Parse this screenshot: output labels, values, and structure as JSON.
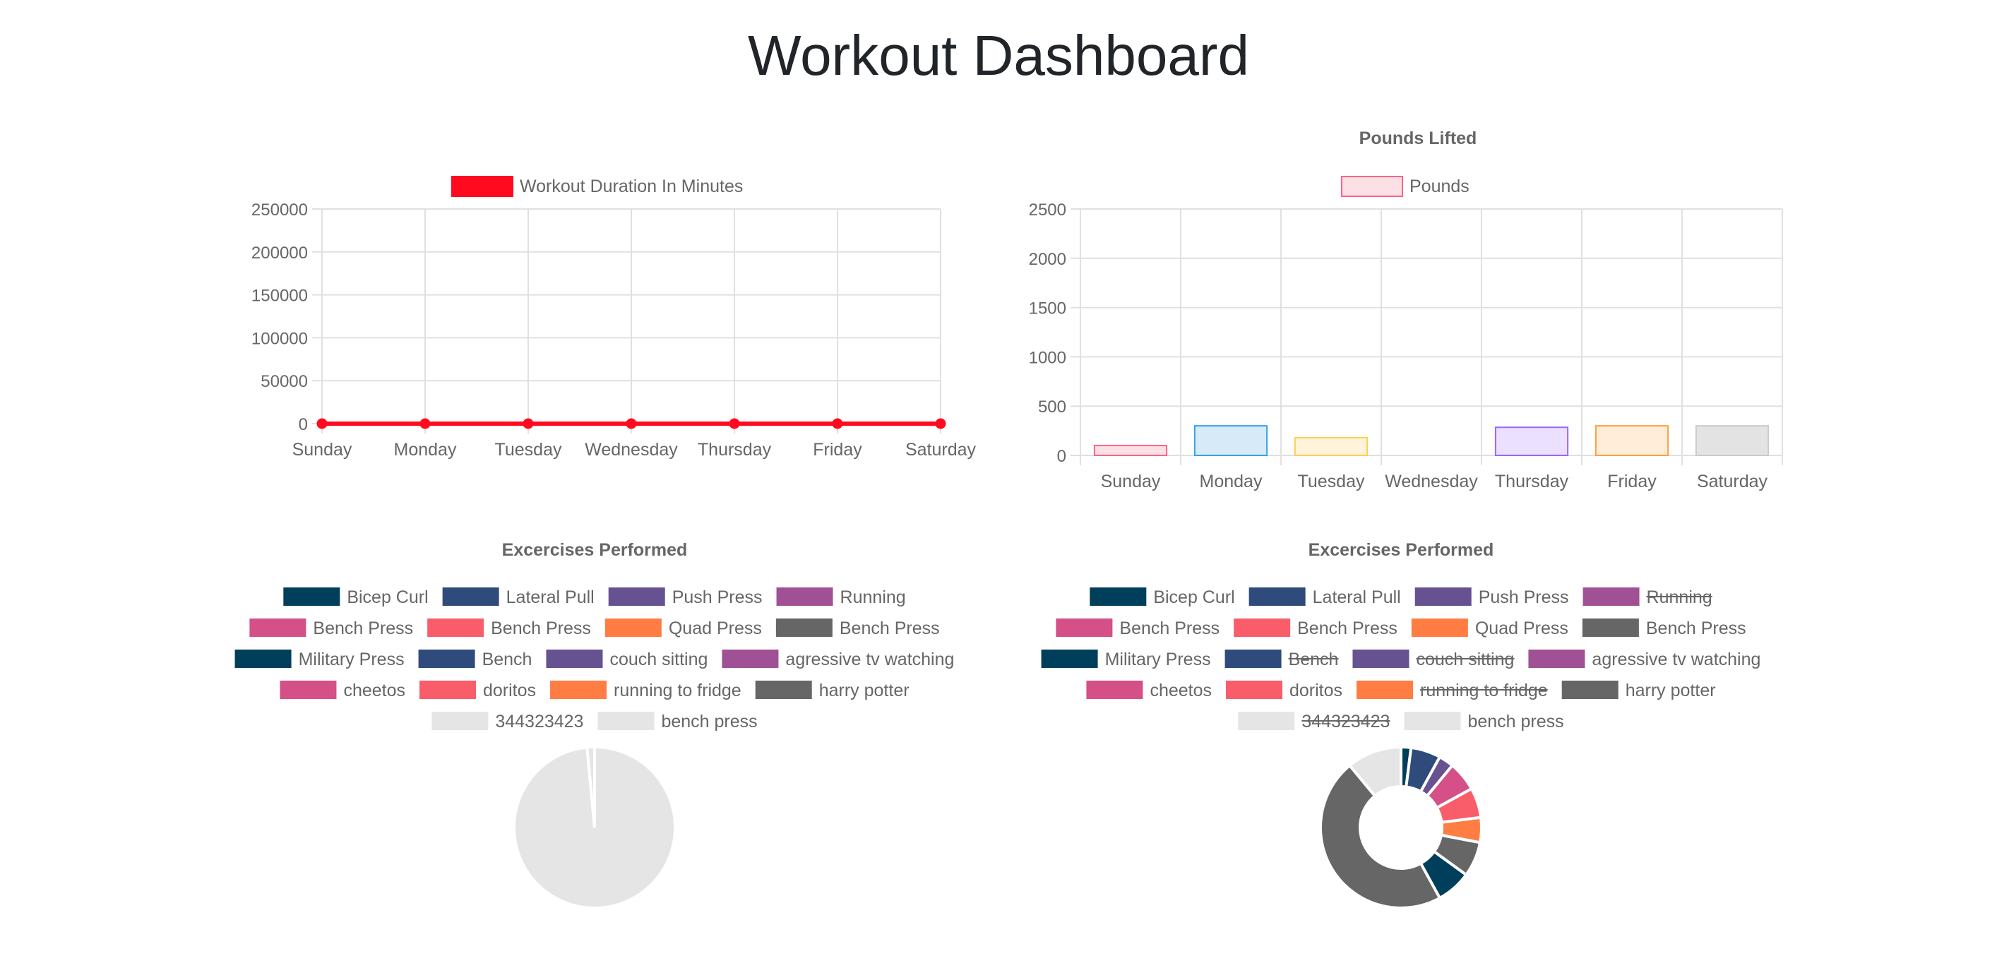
{
  "page": {
    "title": "Workout Dashboard"
  },
  "chart_data": [
    {
      "id": "duration",
      "type": "line",
      "title": "",
      "legend": [
        {
          "label": "Workout Duration In Minutes",
          "color": "#ff0a1e",
          "border": "#ff0a1e"
        }
      ],
      "categories": [
        "Sunday",
        "Monday",
        "Tuesday",
        "Wednesday",
        "Thursday",
        "Friday",
        "Saturday"
      ],
      "series": [
        {
          "name": "Workout Duration In Minutes",
          "values": [
            0,
            0,
            0,
            0,
            0,
            0,
            0
          ],
          "color": "#ff0a1e"
        }
      ],
      "ylim": [
        0,
        250000
      ],
      "yticks": [
        "250000",
        "200000",
        "150000",
        "100000",
        "50000",
        "0"
      ],
      "xlabel": "",
      "ylabel": "",
      "grid": true
    },
    {
      "id": "pounds",
      "type": "bar",
      "title": "Pounds Lifted",
      "legend": [
        {
          "label": "Pounds",
          "color": "#fbe1e6",
          "border": "#ff6384"
        }
      ],
      "categories": [
        "Sunday",
        "Monday",
        "Tuesday",
        "Wednesday",
        "Thursday",
        "Friday",
        "Saturday"
      ],
      "series": [
        {
          "name": "Pounds",
          "values": [
            100,
            300,
            180,
            0,
            285,
            300,
            300
          ]
        }
      ],
      "colors": [
        {
          "fill": "#fbe1e6",
          "stroke": "#ff6384"
        },
        {
          "fill": "#d6eaf8",
          "stroke": "#36a2eb"
        },
        {
          "fill": "#fff4d9",
          "stroke": "#ffce56"
        },
        {
          "fill": "#e3f2f2",
          "stroke": "#4bc0c0"
        },
        {
          "fill": "#ebe0ff",
          "stroke": "#9966ff"
        },
        {
          "fill": "#ffecd9",
          "stroke": "#ff9f40"
        },
        {
          "fill": "#e3e3e3",
          "stroke": "#c9cbcf"
        }
      ],
      "ylim": [
        0,
        2500
      ],
      "yticks": [
        "2500",
        "2000",
        "1500",
        "1000",
        "500",
        "0"
      ],
      "xlabel": "",
      "ylabel": "",
      "grid": true
    },
    {
      "id": "exercises-pie",
      "type": "pie",
      "title": "Excercises Performed",
      "labels": [
        "Bicep Curl",
        "Lateral Pull",
        "Push Press",
        "Running",
        "Bench Press",
        "Bench Press",
        "Quad Press",
        "Bench Press",
        "Military Press",
        "Bench",
        "couch sitting",
        "agressive tv watching",
        "cheetos",
        "doritos",
        "running to fridge",
        "harry potter",
        "344323423",
        "bench press"
      ],
      "values": [
        0,
        0,
        0,
        0,
        0,
        0,
        0,
        0,
        0,
        0,
        0,
        0,
        0,
        0,
        0,
        0,
        98.5,
        1.5
      ],
      "colors": [
        "#003f5c",
        "#2f4b7c",
        "#665191",
        "#a05195",
        "#d45087",
        "#f95d6a",
        "#ff7c43",
        "#666666",
        "#003f5c",
        "#2f4b7c",
        "#665191",
        "#a05195",
        "#d45087",
        "#f95d6a",
        "#ff7c43",
        "#666666",
        "#e5e5e5",
        "#e5e5e5"
      ],
      "hidden": [
        false,
        false,
        false,
        false,
        false,
        false,
        false,
        false,
        false,
        false,
        false,
        false,
        false,
        false,
        false,
        false,
        false,
        false
      ]
    },
    {
      "id": "exercises-doughnut",
      "type": "doughnut",
      "title": "Excercises Performed",
      "labels": [
        "Bicep Curl",
        "Lateral Pull",
        "Push Press",
        "Running",
        "Bench Press",
        "Bench Press",
        "Quad Press",
        "Bench Press",
        "Military Press",
        "Bench",
        "couch sitting",
        "agressive tv watching",
        "cheetos",
        "doritos",
        "running to fridge",
        "harry potter",
        "344323423",
        "bench press"
      ],
      "values": [
        2,
        6,
        3,
        0,
        6,
        6,
        5,
        7,
        7,
        0,
        0,
        0,
        0,
        0,
        0,
        47,
        0,
        11
      ],
      "colors": [
        "#003f5c",
        "#2f4b7c",
        "#665191",
        "#a05195",
        "#d45087",
        "#f95d6a",
        "#ff7c43",
        "#666666",
        "#003f5c",
        "#2f4b7c",
        "#665191",
        "#a05195",
        "#d45087",
        "#f95d6a",
        "#ff7c43",
        "#666666",
        "#e5e5e5",
        "#e5e5e5"
      ],
      "hidden": [
        false,
        false,
        false,
        true,
        false,
        false,
        false,
        false,
        false,
        true,
        true,
        false,
        false,
        false,
        true,
        false,
        true,
        false
      ]
    }
  ]
}
